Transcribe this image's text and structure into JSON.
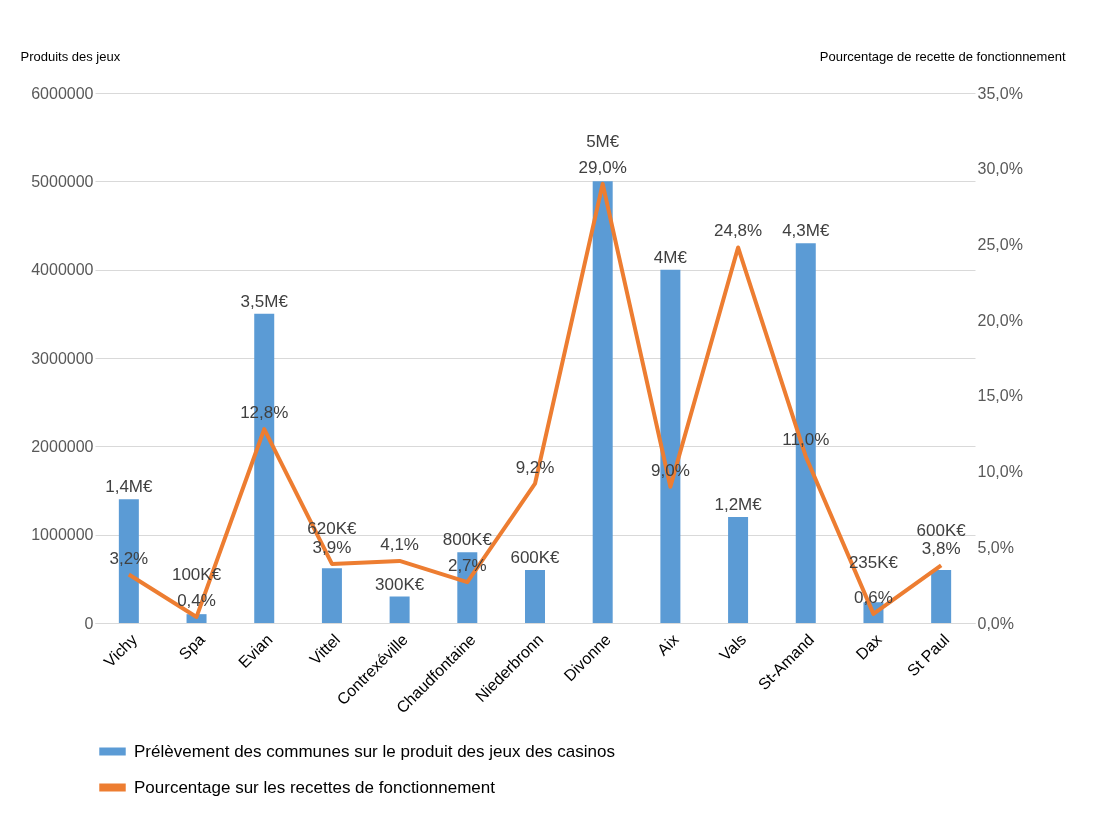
{
  "chart_data": {
    "type": "bar",
    "ylabel": "Produits des jeux",
    "y2label": "Pourcentage de recette de fonctionnement",
    "categories": [
      "Vichy",
      "Spa",
      "Evian",
      "Vittel",
      "Contrexéville",
      "Chaudfontaine",
      "Niederbronn",
      "Divonne",
      "Aix",
      "Vals",
      "St-Amand",
      "Dax",
      "St Paul"
    ],
    "series": [
      {
        "name": "Prélèvement des communes sur le produit des jeux des casinos",
        "color": "#5b9bd5",
        "values": [
          1400000,
          100000,
          3500000,
          620000,
          300000,
          800000,
          600000,
          5000000,
          4000000,
          1200000,
          4300000,
          235000,
          600000
        ],
        "value_labels": [
          "1,4M€",
          "100K€",
          "3,5M€",
          "620K€",
          "300K€",
          "800K€",
          "600K€",
          "5M€",
          "4M€",
          "1,2M€",
          "4,3M€",
          "235K€",
          "600K€"
        ]
      },
      {
        "name": "Pourcentage sur les recettes de fonctionnement",
        "type": "line",
        "axis": "y2",
        "color": "#ed7d31",
        "values": [
          3.2,
          0.4,
          12.8,
          3.9,
          4.1,
          2.7,
          9.2,
          29.0,
          9.0,
          24.8,
          11.0,
          0.6,
          3.8
        ],
        "value_labels": [
          "3,2%",
          "0,4%",
          "12,8%",
          "3,9%",
          "4,1%",
          "2,7%",
          "9,2%",
          "29,0%",
          "9,0%",
          "24,8%",
          "11,0%",
          "0,6%",
          "3,8%"
        ]
      }
    ],
    "ylim": [
      0,
      6000000
    ],
    "yticks": [
      0,
      1000000,
      2000000,
      3000000,
      4000000,
      5000000,
      6000000
    ],
    "y2lim": [
      0,
      35
    ],
    "y2ticks": [
      {
        "value": 0,
        "label": "0,0%"
      },
      {
        "value": 5,
        "label": "5,0%"
      },
      {
        "value": 10,
        "label": "10,0%"
      },
      {
        "value": 15,
        "label": "15,0%"
      },
      {
        "value": 20,
        "label": "20,0%"
      },
      {
        "value": 25,
        "label": "25,0%"
      },
      {
        "value": 30,
        "label": "30,0%"
      },
      {
        "value": 35,
        "label": "35,0%"
      }
    ],
    "grid": "y",
    "legend": "bottom",
    "marker": "none",
    "line_style": "solid"
  }
}
